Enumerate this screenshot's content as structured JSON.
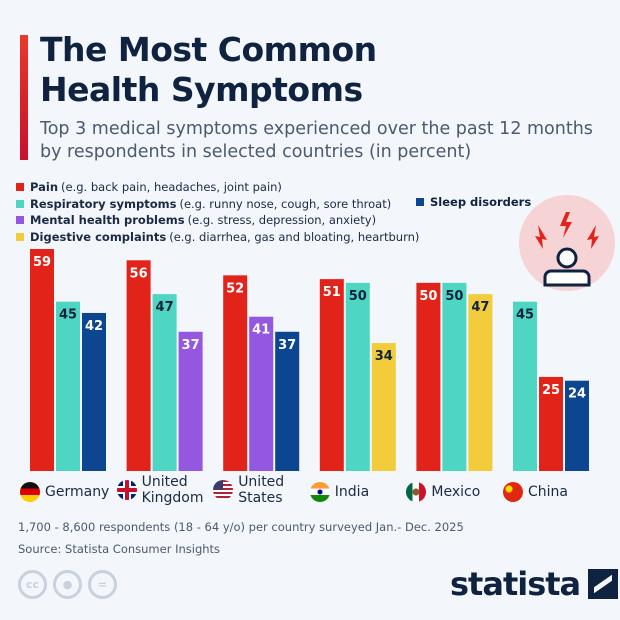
{
  "title": "The Most Common Health Symptoms",
  "title_lines": [
    "The Most Common",
    "Health Symptoms"
  ],
  "subtitle": "Top 3 medical symptoms experienced over the past 12 months by respondents in selected countries (in percent)",
  "legend": [
    {
      "key": "pain",
      "name": "Pain",
      "desc": "(e.g. back pain, headaches, joint pain)",
      "color": "#e2231a"
    },
    {
      "key": "resp",
      "name": "Respiratory symptoms",
      "desc": "(e.g. runny nose, cough, sore throat)",
      "color": "#4fd6c3"
    },
    {
      "key": "mental",
      "name": "Mental health problems",
      "desc": "(e.g. stress, depression, anxiety)",
      "color": "#9457e0"
    },
    {
      "key": "dig",
      "name": "Digestive complaints",
      "desc": "(e.g. diarrhea, gas and bloating, heartburn)",
      "color": "#f2cc3a"
    },
    {
      "key": "sleep",
      "name": "Sleep disorders",
      "desc": "",
      "color": "#0d4690"
    }
  ],
  "chart_data": {
    "type": "bar",
    "ylim": [
      0,
      60
    ],
    "grid": false,
    "categories": [
      "Germany",
      "United Kingdom",
      "United States",
      "India",
      "Mexico",
      "China"
    ],
    "groups": [
      {
        "country": "Germany",
        "bars": [
          {
            "series": "pain",
            "value": 59
          },
          {
            "series": "resp",
            "value": 45
          },
          {
            "series": "sleep",
            "value": 42
          }
        ]
      },
      {
        "country": "United Kingdom",
        "bars": [
          {
            "series": "pain",
            "value": 56
          },
          {
            "series": "resp",
            "value": 47
          },
          {
            "series": "mental",
            "value": 37
          }
        ]
      },
      {
        "country": "United States",
        "bars": [
          {
            "series": "pain",
            "value": 52
          },
          {
            "series": "mental",
            "value": 41
          },
          {
            "series": "sleep",
            "value": 37
          }
        ]
      },
      {
        "country": "India",
        "bars": [
          {
            "series": "pain",
            "value": 51
          },
          {
            "series": "resp",
            "value": 50
          },
          {
            "series": "dig",
            "value": 34
          }
        ]
      },
      {
        "country": "Mexico",
        "bars": [
          {
            "series": "pain",
            "value": 50
          },
          {
            "series": "resp",
            "value": 50
          },
          {
            "series": "dig",
            "value": 47
          }
        ]
      },
      {
        "country": "China",
        "bars": [
          {
            "series": "resp",
            "value": 45
          },
          {
            "series": "pain",
            "value": 25
          },
          {
            "series": "sleep",
            "value": 24
          }
        ]
      }
    ]
  },
  "note": "1,700 - 8,600 respondents (18 - 64 y/o) per country surveyed Jan.- Dec. 2025",
  "source": "Source: Statista Consumer Insights",
  "license_icons": [
    "cc",
    "by",
    "nd"
  ],
  "cc_labels": {
    "cc": "cc",
    "nd": "="
  },
  "logo": "statista"
}
